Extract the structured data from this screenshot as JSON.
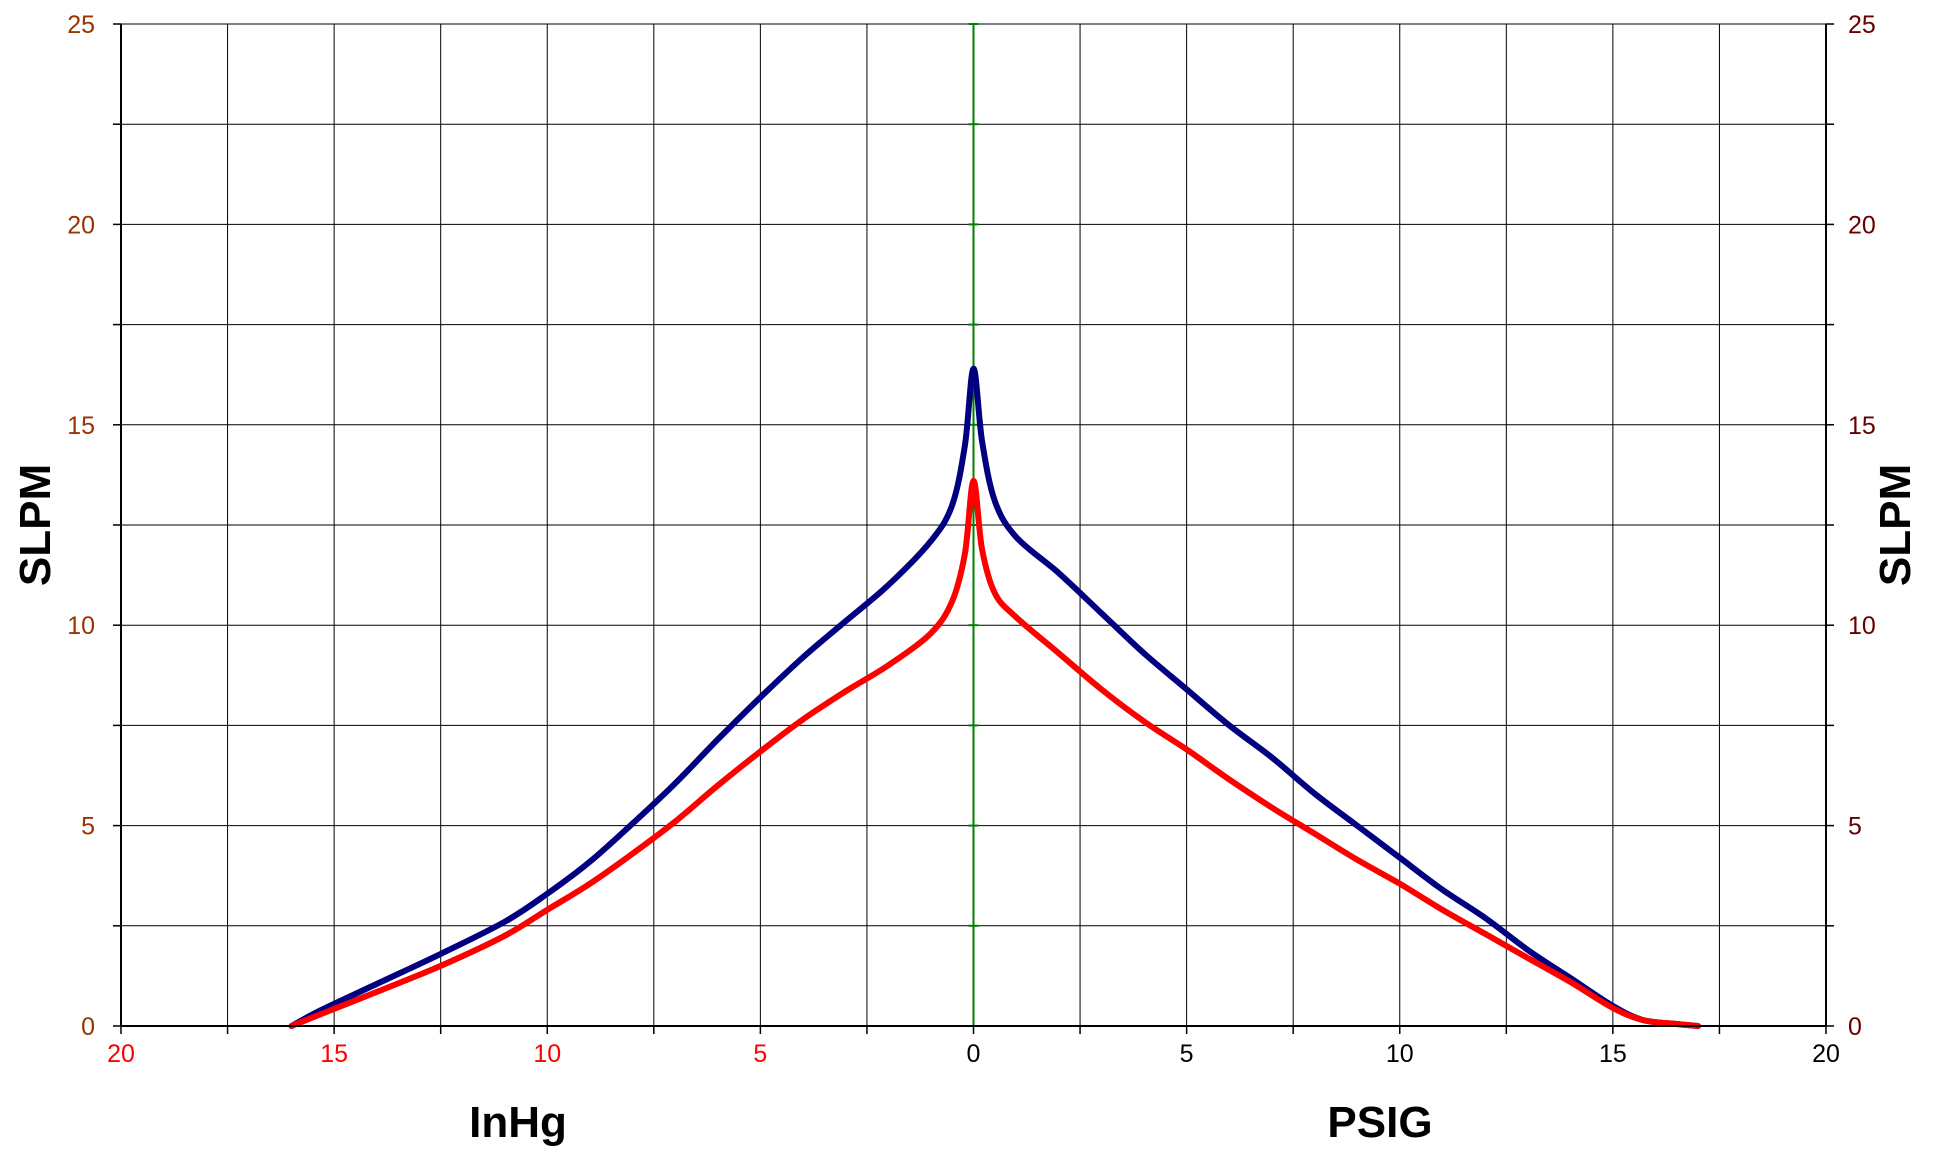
{
  "chart_data": {
    "type": "line",
    "title": "",
    "x_axis": {
      "range": [
        -20,
        20
      ],
      "tick_values": [
        -20,
        -17.5,
        -15,
        -12.5,
        -10,
        -7.5,
        -5,
        -2.5,
        0,
        2.5,
        5,
        7.5,
        10,
        12.5,
        15,
        17.5,
        20
      ],
      "labels": [
        {
          "x": -20,
          "text": "20",
          "color": "#ff0000"
        },
        {
          "x": -15,
          "text": "15",
          "color": "#ff0000"
        },
        {
          "x": -10,
          "text": "10",
          "color": "#ff0000"
        },
        {
          "x": -5,
          "text": "5",
          "color": "#ff0000"
        },
        {
          "x": 0,
          "text": "0",
          "color": "#000000"
        },
        {
          "x": 5,
          "text": "5",
          "color": "#000000"
        },
        {
          "x": 10,
          "text": "10",
          "color": "#000000"
        },
        {
          "x": 15,
          "text": "15",
          "color": "#000000"
        },
        {
          "x": 20,
          "text": "20",
          "color": "#000000"
        }
      ],
      "left_title": "InHg",
      "right_title": "PSIG"
    },
    "y_axis": {
      "range": [
        0,
        25
      ],
      "tick_values": [
        0,
        2.5,
        5,
        7.5,
        10,
        12.5,
        15,
        17.5,
        20,
        22.5,
        25
      ],
      "labels": [
        "0",
        "5",
        "10",
        "15",
        "20",
        "25"
      ],
      "left_label_color": "#993300",
      "right_label_color": "#660000",
      "left_title": "SLPM",
      "right_title": "SLPM"
    },
    "center_axis_color": "#008000",
    "grid": true,
    "series": [
      {
        "color": "#000080",
        "points": [
          [
            -16,
            0
          ],
          [
            -15.3,
            0.4
          ],
          [
            -14,
            1.05
          ],
          [
            -12.5,
            1.8
          ],
          [
            -11,
            2.6
          ],
          [
            -10,
            3.3
          ],
          [
            -9,
            4.1
          ],
          [
            -8,
            5.05
          ],
          [
            -7,
            6.05
          ],
          [
            -6,
            7.15
          ],
          [
            -5,
            8.2
          ],
          [
            -4,
            9.2
          ],
          [
            -3,
            10.1
          ],
          [
            -2,
            11.0
          ],
          [
            -1,
            12.1
          ],
          [
            -0.5,
            13.0
          ],
          [
            -0.2,
            14.5
          ],
          [
            0,
            16.4
          ],
          [
            0.2,
            14.6
          ],
          [
            0.5,
            13.1
          ],
          [
            1,
            12.2
          ],
          [
            2,
            11.3
          ],
          [
            3,
            10.3
          ],
          [
            4,
            9.3
          ],
          [
            5,
            8.4
          ],
          [
            6,
            7.5
          ],
          [
            7,
            6.7
          ],
          [
            8,
            5.8
          ],
          [
            9,
            5.0
          ],
          [
            10,
            4.2
          ],
          [
            11,
            3.4
          ],
          [
            12,
            2.7
          ],
          [
            13,
            1.9
          ],
          [
            14,
            1.2
          ],
          [
            15,
            0.5
          ],
          [
            15.7,
            0.15
          ],
          [
            16.5,
            0.05
          ],
          [
            17,
            0
          ]
        ]
      },
      {
        "color": "#ff0000",
        "points": [
          [
            -16,
            0
          ],
          [
            -15.3,
            0.3
          ],
          [
            -14,
            0.85
          ],
          [
            -12.5,
            1.5
          ],
          [
            -11,
            2.25
          ],
          [
            -10,
            2.9
          ],
          [
            -9,
            3.55
          ],
          [
            -8,
            4.3
          ],
          [
            -7,
            5.1
          ],
          [
            -6,
            6.0
          ],
          [
            -5,
            6.85
          ],
          [
            -4,
            7.65
          ],
          [
            -3,
            8.35
          ],
          [
            -2,
            9.0
          ],
          [
            -1,
            9.8
          ],
          [
            -0.5,
            10.6
          ],
          [
            -0.2,
            11.8
          ],
          [
            0,
            13.6
          ],
          [
            0.2,
            11.9
          ],
          [
            0.5,
            10.8
          ],
          [
            1,
            10.2
          ],
          [
            2,
            9.3
          ],
          [
            3,
            8.4
          ],
          [
            4,
            7.6
          ],
          [
            5,
            6.9
          ],
          [
            6,
            6.15
          ],
          [
            7,
            5.45
          ],
          [
            8,
            4.8
          ],
          [
            9,
            4.15
          ],
          [
            10,
            3.55
          ],
          [
            11,
            2.9
          ],
          [
            12,
            2.3
          ],
          [
            13,
            1.7
          ],
          [
            14,
            1.1
          ],
          [
            15,
            0.45
          ],
          [
            15.7,
            0.15
          ],
          [
            16.5,
            0.05
          ],
          [
            17,
            0
          ]
        ]
      }
    ]
  }
}
